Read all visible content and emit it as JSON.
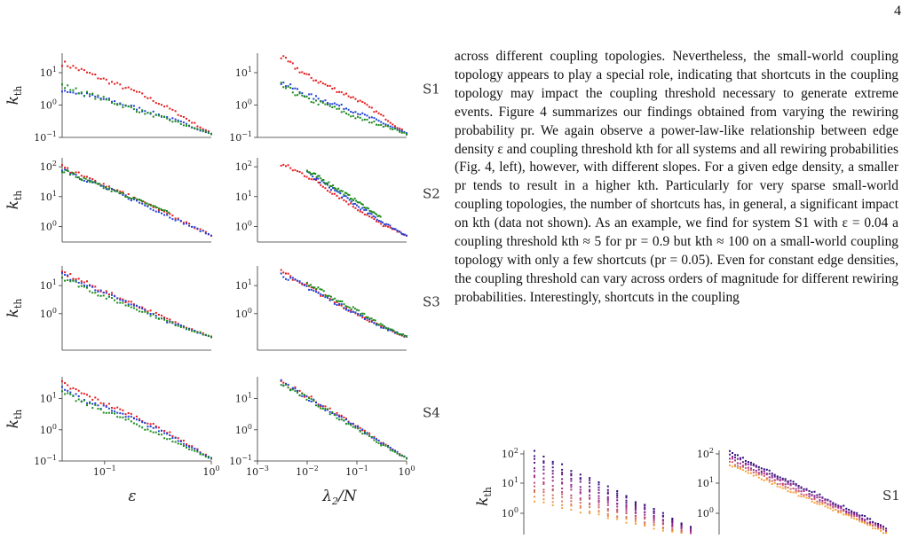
{
  "page_number": "4",
  "paragraph": "across different coupling topologies. Nevertheless, the small-world coupling topology appears to play a special role, indicating that shortcuts in the coupling topology may impact the coupling threshold necessary to generate extreme events. Figure 4 summarizes our findings obtained from varying the rewiring probability pr. We again observe a power-law-like relationship between edge density ε and coupling threshold kth for all systems and all rewiring probabilities (Fig. 4, left), however, with different slopes. For a given edge density, a smaller pr tends to result in a higher kth. Particularly for very sparse small-world coupling topologies, the number of shortcuts has, in general, a significant impact on kth (data not shown). As an example, we find for system S1 with ε = 0.04 a coupling threshold kth ≈ 5 for pr = 0.9 but kth ≈ 100 on a small-world coupling topology with only a few shortcuts (pr = 0.05). Even for constant edge densities, the coupling threshold can vary across orders of magnitude for different rewiring probabilities. Interestingly, shortcuts in the coupling",
  "figure_left": {
    "ylabel": "kth",
    "xlabel_left": "ε",
    "xlabel_right": "λ2/N",
    "x_ticks_left": [
      "10−1",
      "100"
    ],
    "x_ticks_right": [
      "10−3",
      "10−2",
      "10−1",
      "100"
    ],
    "rows": [
      {
        "system": "S1",
        "y_ticks": [
          "101",
          "100",
          "10−1"
        ]
      },
      {
        "system": "S2",
        "y_ticks": [
          "102",
          "101",
          "100"
        ]
      },
      {
        "system": "S3",
        "y_ticks": [
          "101",
          "100"
        ]
      },
      {
        "system": "S4",
        "y_ticks": [
          "101",
          "100",
          "10−1"
        ]
      }
    ],
    "series_colors": [
      "#e41a1c",
      "#1f3fd6",
      "#1a8a1a"
    ]
  },
  "figure_bottom": {
    "ylabel": "kth",
    "system": "S1",
    "y_ticks": [
      "102",
      "101",
      "100"
    ],
    "gradient_colors": [
      "#2b0a7a",
      "#a42b8f",
      "#f6a13a"
    ]
  },
  "chart_data": [
    {
      "type": "scatter",
      "system": "S1",
      "x_axis": "ε",
      "x_scale": "log",
      "xlim": [
        0.04,
        1.0
      ],
      "y_axis": "kth",
      "y_scale": "log",
      "ylim": [
        0.1,
        40
      ],
      "series": [
        {
          "x": [
            0.04,
            0.06,
            0.1,
            0.2,
            0.4,
            1.0
          ],
          "y": [
            20,
            12,
            6,
            2.5,
            0.8,
            0.13
          ]
        },
        {
          "x": [
            0.04,
            0.06,
            0.1,
            0.2,
            0.4,
            1.0
          ],
          "y": [
            3,
            2.2,
            1.5,
            0.8,
            0.4,
            0.13
          ]
        },
        {
          "x": [
            0.04,
            0.06,
            0.1,
            0.2,
            0.4,
            1.0
          ],
          "y": [
            4,
            2.5,
            1.5,
            0.7,
            0.35,
            0.13
          ]
        }
      ]
    },
    {
      "type": "scatter",
      "system": "S1",
      "x_axis": "λ2/N",
      "x_scale": "log",
      "xlim": [
        0.001,
        1.0
      ],
      "y_axis": "kth",
      "y_scale": "log",
      "ylim": [
        0.1,
        40
      ],
      "series": [
        {
          "x": [
            0.003,
            0.01,
            0.03,
            0.1,
            0.3,
            1.0
          ],
          "y": [
            30,
            8,
            3.5,
            1.5,
            0.5,
            0.13
          ]
        },
        {
          "x": [
            0.003,
            0.01,
            0.03,
            0.1,
            0.3,
            1.0
          ],
          "y": [
            5,
            2,
            1.2,
            0.6,
            0.3,
            0.13
          ]
        },
        {
          "x": [
            0.003,
            0.01,
            0.03,
            0.1,
            0.3,
            1.0
          ],
          "y": [
            4,
            1.5,
            0.9,
            0.4,
            0.25,
            0.13
          ]
        }
      ]
    },
    {
      "type": "scatter",
      "system": "S2",
      "x_axis": "ε",
      "x_scale": "log",
      "xlim": [
        0.04,
        1.0
      ],
      "y_axis": "kth",
      "y_scale": "log",
      "ylim": [
        0.3,
        200
      ],
      "series": [
        {
          "x": [
            0.04,
            0.06,
            0.1,
            0.2,
            0.4,
            1.0
          ],
          "y": [
            100,
            50,
            25,
            8,
            2.5,
            0.5
          ]
        },
        {
          "x": [
            0.04,
            0.06,
            0.1,
            0.2,
            0.4,
            1.0
          ],
          "y": [
            90,
            45,
            20,
            7,
            2.2,
            0.5
          ]
        },
        {
          "x": [
            0.04,
            0.06,
            0.1,
            0.2,
            0.4
          ],
          "y": [
            80,
            40,
            20,
            8,
            3
          ]
        }
      ]
    },
    {
      "type": "scatter",
      "system": "S2",
      "x_axis": "λ2/N",
      "x_scale": "log",
      "xlim": [
        0.001,
        1.0
      ],
      "y_axis": "kth",
      "y_scale": "log",
      "ylim": [
        0.3,
        200
      ],
      "series": [
        {
          "x": [
            0.003,
            0.01,
            0.03,
            0.1,
            0.3,
            1.0
          ],
          "y": [
            120,
            50,
            15,
            4,
            1.2,
            0.5
          ]
        },
        {
          "x": [
            0.01,
            0.03,
            0.1,
            0.3,
            1.0
          ],
          "y": [
            60,
            20,
            5,
            1.5,
            0.5
          ]
        },
        {
          "x": [
            0.01,
            0.03,
            0.1,
            0.3
          ],
          "y": [
            70,
            25,
            7,
            2
          ]
        }
      ]
    },
    {
      "type": "scatter",
      "system": "S3",
      "x_axis": "ε",
      "x_scale": "log",
      "xlim": [
        0.04,
        1.0
      ],
      "y_axis": "kth",
      "y_scale": "log",
      "ylim": [
        0.05,
        50
      ],
      "series": [
        {
          "x": [
            0.04,
            0.06,
            0.1,
            0.2,
            0.4,
            1.0
          ],
          "y": [
            30,
            15,
            6,
            2,
            0.6,
            0.15
          ]
        },
        {
          "x": [
            0.04,
            0.06,
            0.1,
            0.2,
            0.4,
            1.0
          ],
          "y": [
            25,
            12,
            5,
            1.8,
            0.5,
            0.15
          ]
        },
        {
          "x": [
            0.04,
            0.06,
            0.1,
            0.2,
            0.4,
            1.0
          ],
          "y": [
            20,
            10,
            4,
            1.5,
            0.5,
            0.15
          ]
        }
      ]
    },
    {
      "type": "scatter",
      "system": "S3",
      "x_axis": "λ2/N",
      "x_scale": "log",
      "xlim": [
        0.001,
        1.0
      ],
      "y_axis": "kth",
      "y_scale": "log",
      "ylim": [
        0.05,
        50
      ],
      "series": [
        {
          "x": [
            0.003,
            0.01,
            0.03,
            0.1,
            0.3,
            1.0
          ],
          "y": [
            30,
            10,
            3,
            1,
            0.35,
            0.15
          ]
        },
        {
          "x": [
            0.003,
            0.01,
            0.03,
            0.1,
            0.3,
            1.0
          ],
          "y": [
            25,
            9,
            3,
            1,
            0.35,
            0.15
          ]
        },
        {
          "x": [
            0.01,
            0.03,
            0.1,
            0.3,
            1.0
          ],
          "y": [
            12,
            4,
            1.3,
            0.4,
            0.15
          ]
        }
      ]
    },
    {
      "type": "scatter",
      "system": "S4",
      "x_axis": "ε",
      "x_scale": "log",
      "xlim": [
        0.04,
        1.0
      ],
      "y_axis": "kth",
      "y_scale": "log",
      "ylim": [
        0.1,
        50
      ],
      "series": [
        {
          "x": [
            0.04,
            0.06,
            0.1,
            0.2,
            0.4,
            1.0
          ],
          "y": [
            30,
            15,
            7,
            2.5,
            0.8,
            0.12
          ]
        },
        {
          "x": [
            0.04,
            0.06,
            0.1,
            0.2,
            0.4,
            1.0
          ],
          "y": [
            20,
            10,
            5,
            2,
            0.7,
            0.12
          ]
        },
        {
          "x": [
            0.04,
            0.06,
            0.1,
            0.2,
            0.4,
            1.0
          ],
          "y": [
            15,
            8,
            4,
            1.5,
            0.5,
            0.12
          ]
        }
      ]
    },
    {
      "type": "scatter",
      "system": "S4",
      "x_axis": "λ2/N",
      "x_scale": "log",
      "xlim": [
        0.001,
        1.0
      ],
      "y_axis": "kth",
      "y_scale": "log",
      "ylim": [
        0.1,
        50
      ],
      "series": [
        {
          "x": [
            0.003,
            0.01,
            0.03,
            0.1,
            0.3,
            1.0
          ],
          "y": [
            35,
            12,
            4,
            1.3,
            0.4,
            0.12
          ]
        },
        {
          "x": [
            0.003,
            0.01,
            0.03,
            0.1,
            0.3,
            1.0
          ],
          "y": [
            33,
            11,
            3.8,
            1.2,
            0.4,
            0.12
          ]
        },
        {
          "x": [
            0.003,
            0.01,
            0.03,
            0.1,
            0.3,
            1.0
          ],
          "y": [
            30,
            10,
            3.5,
            1.1,
            0.35,
            0.12
          ]
        }
      ]
    }
  ]
}
